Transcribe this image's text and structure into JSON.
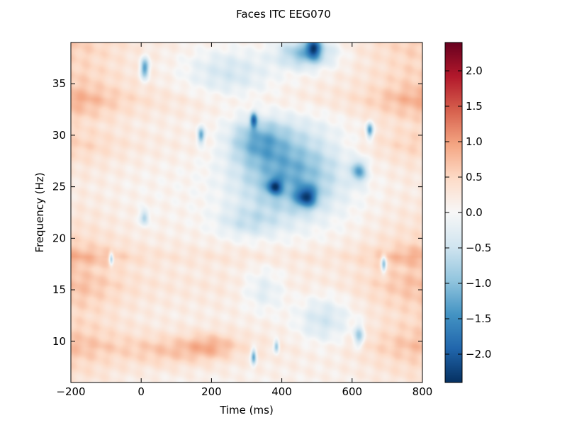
{
  "chart_data": {
    "type": "heatmap",
    "title": "Faces ITC EEG070",
    "xlabel": "Time (ms)",
    "ylabel": "Frequency (Hz)",
    "xlim": [
      -200,
      800
    ],
    "ylim": [
      6,
      39
    ],
    "x_ticks": [
      -200,
      0,
      200,
      400,
      600,
      800
    ],
    "x_tick_labels": [
      "−200",
      "0",
      "200",
      "400",
      "600",
      "800"
    ],
    "y_ticks": [
      10,
      15,
      20,
      25,
      30,
      35
    ],
    "y_tick_labels": [
      "10",
      "15",
      "20",
      "25",
      "30",
      "35"
    ],
    "colorbar": {
      "colormap": "RdBu_r",
      "vmin": -2.4,
      "vmax": 2.4,
      "ticks": [
        2.0,
        1.5,
        1.0,
        0.5,
        0.0,
        -0.5,
        -1.0,
        -1.5,
        -2.0
      ],
      "tick_labels": [
        "2.0",
        "1.5",
        "1.0",
        "0.5",
        "0.0",
        "−0.5",
        "−1.0",
        "−1.5",
        "−2.0"
      ]
    },
    "freq_bands_hz": [
      {
        "freq": 6,
        "value": 0.3
      },
      {
        "freq": 8,
        "value": 0.5
      },
      {
        "freq": 9.5,
        "value": 0.75
      },
      {
        "freq": 11,
        "value": 0.55
      },
      {
        "freq": 12.5,
        "value": 0.45
      },
      {
        "freq": 14,
        "value": 0.6
      },
      {
        "freq": 15.5,
        "value": 0.75
      },
      {
        "freq": 17,
        "value": 0.6
      },
      {
        "freq": 18.2,
        "value": 0.9
      },
      {
        "freq": 19.5,
        "value": 0.5
      },
      {
        "freq": 21,
        "value": 0.35
      },
      {
        "freq": 23,
        "value": 0.25
      },
      {
        "freq": 25,
        "value": 0.2
      },
      {
        "freq": 27,
        "value": 0.3
      },
      {
        "freq": 29,
        "value": 0.55
      },
      {
        "freq": 31,
        "value": 0.4
      },
      {
        "freq": 33.5,
        "value": 0.9
      },
      {
        "freq": 35,
        "value": 0.6
      },
      {
        "freq": 37,
        "value": 0.5
      },
      {
        "freq": 39,
        "value": 0.6
      }
    ],
    "regions": [
      {
        "t_center": 420,
        "f_center": 26.5,
        "t_width": 300,
        "f_width": 9,
        "value": -1.3
      },
      {
        "t_center": 330,
        "f_center": 29.5,
        "t_width": 160,
        "f_width": 4,
        "value": -0.9
      },
      {
        "t_center": 250,
        "f_center": 36,
        "t_width": 260,
        "f_width": 5,
        "value": -0.6
      },
      {
        "t_center": 470,
        "f_center": 38,
        "t_width": 160,
        "f_width": 3,
        "value": -1.2
      },
      {
        "t_center": 300,
        "f_center": 21.5,
        "t_width": 180,
        "f_width": 3,
        "value": -0.5
      },
      {
        "t_center": 520,
        "f_center": 12,
        "t_width": 160,
        "f_width": 5,
        "value": -0.6
      },
      {
        "t_center": 350,
        "f_center": 15,
        "t_width": 120,
        "f_width": 4,
        "value": -0.5
      },
      {
        "t_center": 470,
        "f_center": 24,
        "t_width": 60,
        "f_width": 2,
        "value": -1.6
      },
      {
        "t_center": 380,
        "f_center": 25,
        "t_width": 40,
        "f_width": 1.5,
        "value": -1.4
      },
      {
        "t_center": 620,
        "f_center": 26.5,
        "t_width": 40,
        "f_width": 2,
        "value": -1.3
      },
      {
        "t_center": 650,
        "f_center": 30.5,
        "t_width": 20,
        "f_width": 1.5,
        "value": -1.5
      },
      {
        "t_center": 320,
        "f_center": 31.5,
        "t_width": 20,
        "f_width": 1.5,
        "value": -1.5
      },
      {
        "t_center": 170,
        "f_center": 30,
        "t_width": 20,
        "f_width": 1.5,
        "value": -1.3
      },
      {
        "t_center": 10,
        "f_center": 36.5,
        "t_width": 25,
        "f_width": 2,
        "value": -1.5
      },
      {
        "t_center": 490,
        "f_center": 38.5,
        "t_width": 40,
        "f_width": 2,
        "value": -1.6
      },
      {
        "t_center": 690,
        "f_center": 17.5,
        "t_width": 15,
        "f_width": 1.5,
        "value": -1.4
      },
      {
        "t_center": -85,
        "f_center": 18,
        "t_width": 12,
        "f_width": 1.2,
        "value": -1.2
      },
      {
        "t_center": 320,
        "f_center": 8.5,
        "t_width": 15,
        "f_width": 1.5,
        "value": -1.4
      },
      {
        "t_center": 385,
        "f_center": 9.5,
        "t_width": 15,
        "f_width": 1.2,
        "value": -1.2
      },
      {
        "t_center": 10,
        "f_center": 22,
        "t_width": 25,
        "f_width": 1.5,
        "value": -0.9
      },
      {
        "t_center": 620,
        "f_center": 10.5,
        "t_width": 30,
        "f_width": 2,
        "value": -1.0
      },
      {
        "t_center": 80,
        "f_center": 9,
        "t_width": 260,
        "f_width": 3,
        "value": 0.4
      },
      {
        "t_center": 200,
        "f_center": 9.5,
        "t_width": 150,
        "f_width": 2.5,
        "value": 0.5
      }
    ]
  }
}
